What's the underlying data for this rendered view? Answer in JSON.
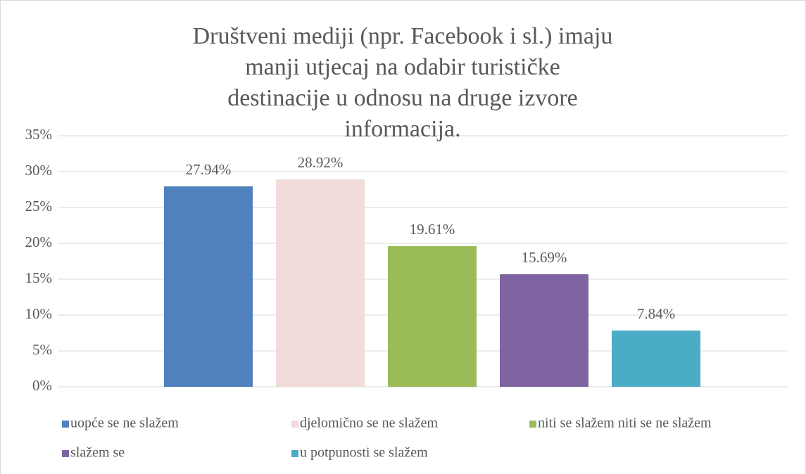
{
  "chart_data": {
    "type": "bar",
    "title": "Društveni mediji (npr. Facebook i sl.) imaju manji utjecaj na odabir turističke destinacije u odnosu na druge izvore informacija.",
    "series": [
      {
        "name": "uopće se ne slažem",
        "color": "#4f81bd",
        "values": [
          27.94
        ],
        "value_labels": [
          "27.94%"
        ]
      },
      {
        "name": "djelomično se ne slažem",
        "color": "#f2dcdb",
        "values": [
          28.92
        ],
        "value_labels": [
          "28.92%"
        ]
      },
      {
        "name": "niti se slažem niti se ne slažem",
        "color": "#9bbb59",
        "values": [
          19.61
        ],
        "value_labels": [
          "19.61%"
        ]
      },
      {
        "name": "slažem se",
        "color": "#8064a2",
        "values": [
          15.69
        ],
        "value_labels": [
          "15.69%"
        ]
      },
      {
        "name": "u potpunosti se slažem",
        "color": "#4bacc6",
        "values": [
          7.84
        ],
        "value_labels": [
          "7.84%"
        ]
      }
    ],
    "ylim": [
      0,
      35
    ],
    "yticks": [
      {
        "value": 0,
        "label": "0%"
      },
      {
        "value": 5,
        "label": "5%"
      },
      {
        "value": 10,
        "label": "10%"
      },
      {
        "value": 15,
        "label": "15%"
      },
      {
        "value": 20,
        "label": "20%"
      },
      {
        "value": 25,
        "label": "25%"
      },
      {
        "value": 30,
        "label": "30%"
      },
      {
        "value": 35,
        "label": "35%"
      }
    ],
    "grid": true,
    "legend": "bottom"
  }
}
